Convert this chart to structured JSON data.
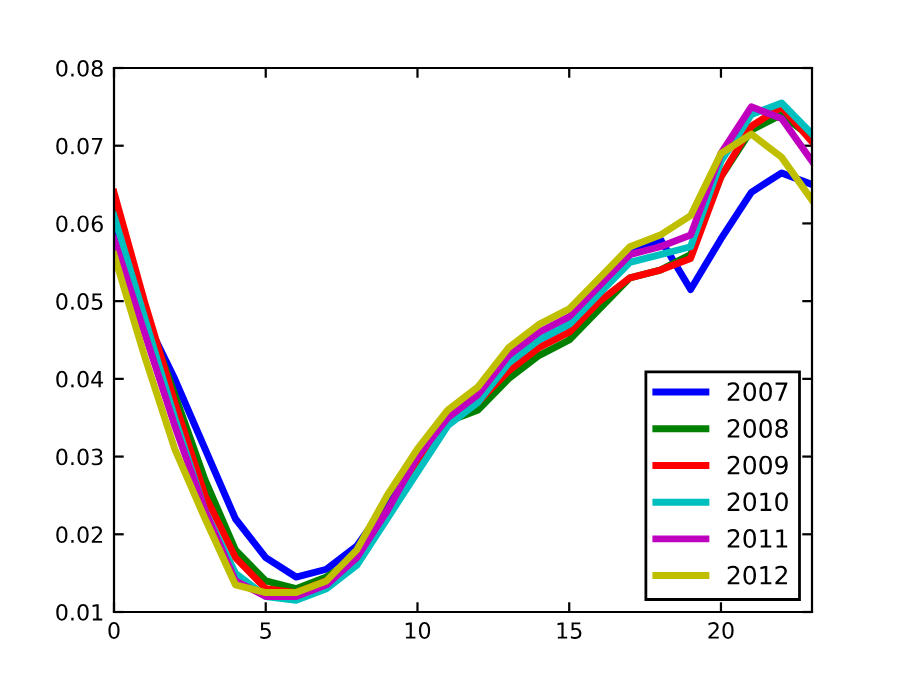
{
  "chart_data": {
    "type": "line",
    "x": [
      0,
      1,
      2,
      3,
      4,
      5,
      6,
      7,
      8,
      9,
      10,
      11,
      12,
      13,
      14,
      15,
      16,
      17,
      18,
      19,
      20,
      21,
      22,
      23
    ],
    "series": [
      {
        "name": "2007",
        "color": "#0000ff",
        "values": [
          0.06,
          0.048,
          0.04,
          0.031,
          0.022,
          0.017,
          0.0145,
          0.0155,
          0.0185,
          0.024,
          0.03,
          0.035,
          0.037,
          0.042,
          0.045,
          0.047,
          0.051,
          0.056,
          0.058,
          0.0515,
          0.058,
          0.064,
          0.0665,
          0.065
        ]
      },
      {
        "name": "2008",
        "color": "#008000",
        "values": [
          0.062,
          0.049,
          0.038,
          0.027,
          0.018,
          0.014,
          0.013,
          0.0145,
          0.017,
          0.023,
          0.029,
          0.0345,
          0.036,
          0.04,
          0.043,
          0.045,
          0.049,
          0.053,
          0.054,
          0.056,
          0.066,
          0.072,
          0.074,
          0.071
        ]
      },
      {
        "name": "2009",
        "color": "#ff0000",
        "values": [
          0.064,
          0.05,
          0.037,
          0.025,
          0.017,
          0.013,
          0.0125,
          0.014,
          0.017,
          0.023,
          0.029,
          0.035,
          0.037,
          0.041,
          0.044,
          0.046,
          0.05,
          0.053,
          0.054,
          0.0555,
          0.066,
          0.0725,
          0.075,
          0.0705
        ]
      },
      {
        "name": "2010",
        "color": "#00bfbf",
        "values": [
          0.061,
          0.048,
          0.035,
          0.023,
          0.015,
          0.012,
          0.0115,
          0.013,
          0.016,
          0.022,
          0.028,
          0.034,
          0.037,
          0.042,
          0.045,
          0.047,
          0.051,
          0.055,
          0.056,
          0.057,
          0.068,
          0.074,
          0.0755,
          0.0715
        ]
      },
      {
        "name": "2011",
        "color": "#bf00bf",
        "values": [
          0.058,
          0.046,
          0.034,
          0.023,
          0.014,
          0.012,
          0.012,
          0.0135,
          0.017,
          0.023,
          0.03,
          0.035,
          0.038,
          0.043,
          0.046,
          0.048,
          0.052,
          0.056,
          0.057,
          0.0585,
          0.069,
          0.075,
          0.0735,
          0.068
        ]
      },
      {
        "name": "2012",
        "color": "#bfbf00",
        "values": [
          0.056,
          0.043,
          0.031,
          0.022,
          0.0135,
          0.0125,
          0.0125,
          0.014,
          0.018,
          0.025,
          0.031,
          0.036,
          0.039,
          0.044,
          0.047,
          0.049,
          0.053,
          0.057,
          0.0585,
          0.061,
          0.069,
          0.0715,
          0.0685,
          0.063
        ]
      }
    ],
    "xlim": [
      0,
      23
    ],
    "xticks": [
      0,
      5,
      10,
      15,
      20
    ],
    "ylim": [
      0.01,
      0.08
    ],
    "yticks": [
      0.01,
      0.02,
      0.03,
      0.04,
      0.05,
      0.06,
      0.07,
      0.08
    ],
    "legend": "bottom right",
    "grid": false
  }
}
